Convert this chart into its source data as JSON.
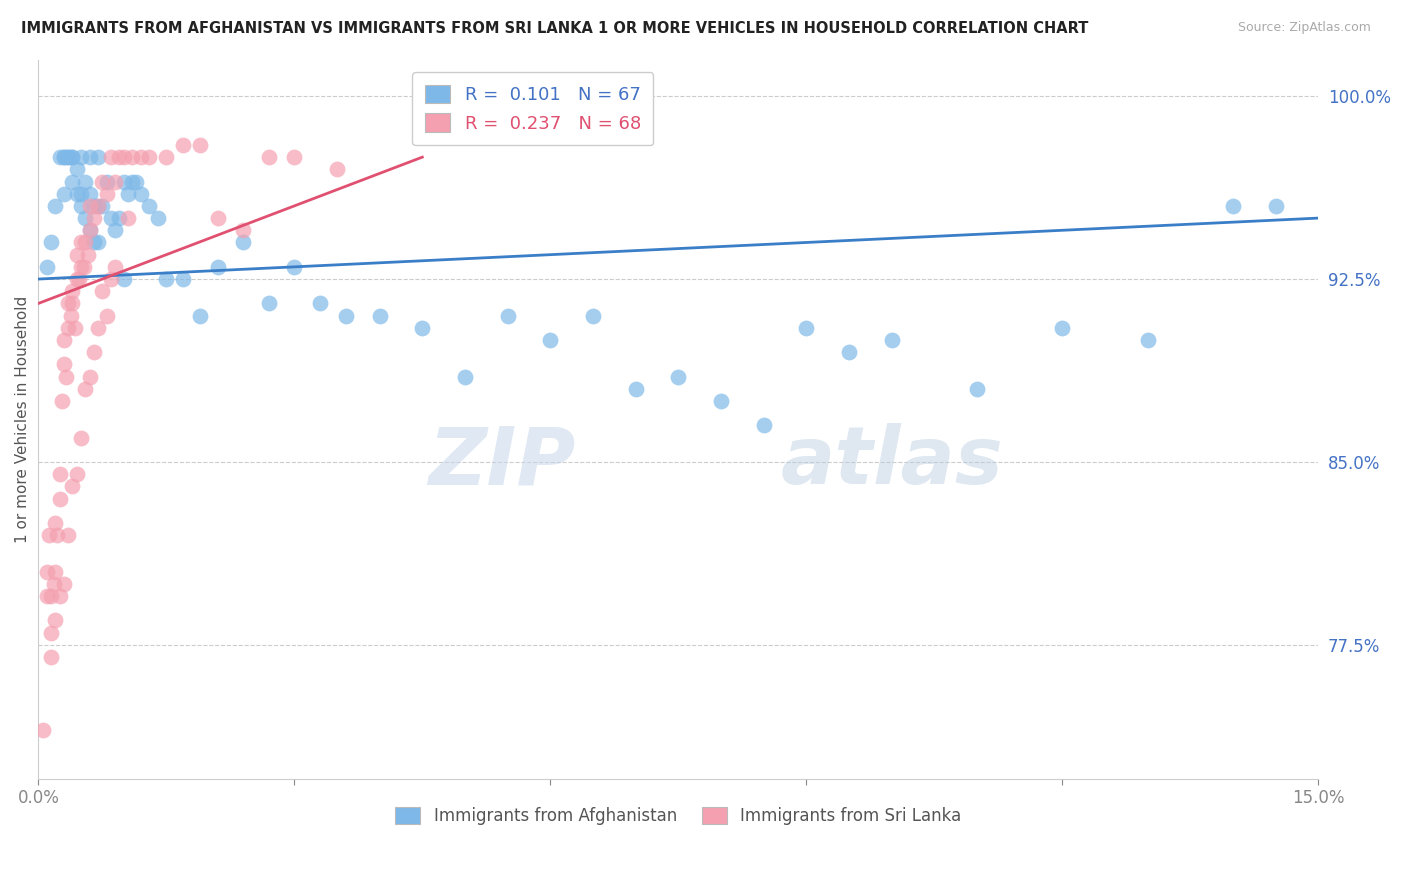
{
  "title": "IMMIGRANTS FROM AFGHANISTAN VS IMMIGRANTS FROM SRI LANKA 1 OR MORE VEHICLES IN HOUSEHOLD CORRELATION CHART",
  "source": "Source: ZipAtlas.com",
  "ylabel": "1 or more Vehicles in Household",
  "xlim": [
    0.0,
    15.0
  ],
  "ylim": [
    72.0,
    101.5
  ],
  "yticks": [
    77.5,
    85.0,
    92.5,
    100.0
  ],
  "xticks": [
    0.0,
    3.0,
    6.0,
    9.0,
    12.0,
    15.0
  ],
  "xtick_labels": [
    "0.0%",
    "",
    "",
    "",
    "",
    "15.0%"
  ],
  "ytick_labels": [
    "77.5%",
    "85.0%",
    "92.5%",
    "100.0%"
  ],
  "color_afg": "#7eb8e8",
  "color_sri": "#f4a0b0",
  "line_color_afg": "#3a7ec8",
  "line_color_sri": "#e05070",
  "watermark_zip": "ZIP",
  "watermark_atlas": "atlas",
  "afg_x": [
    0.1,
    0.15,
    0.2,
    0.25,
    0.3,
    0.3,
    0.35,
    0.35,
    0.4,
    0.4,
    0.45,
    0.45,
    0.5,
    0.5,
    0.55,
    0.55,
    0.6,
    0.6,
    0.65,
    0.65,
    0.7,
    0.7,
    0.75,
    0.8,
    0.85,
    0.9,
    0.95,
    1.0,
    1.0,
    1.05,
    1.1,
    1.15,
    1.2,
    1.3,
    1.4,
    1.5,
    1.7,
    1.9,
    2.1,
    2.4,
    2.7,
    3.0,
    3.3,
    3.6,
    4.0,
    4.5,
    5.0,
    5.5,
    6.0,
    6.5,
    7.0,
    7.5,
    8.0,
    8.5,
    9.0,
    9.5,
    10.0,
    11.0,
    12.0,
    13.0,
    14.0,
    14.5,
    0.3,
    0.4,
    0.5,
    0.6,
    0.7
  ],
  "afg_y": [
    93.0,
    94.0,
    95.5,
    97.5,
    97.5,
    96.0,
    97.5,
    97.5,
    97.5,
    96.5,
    96.0,
    97.0,
    95.5,
    96.0,
    95.0,
    96.5,
    94.5,
    96.0,
    94.0,
    95.5,
    94.0,
    95.5,
    95.5,
    96.5,
    95.0,
    94.5,
    95.0,
    92.5,
    96.5,
    96.0,
    96.5,
    96.5,
    96.0,
    95.5,
    95.0,
    92.5,
    92.5,
    91.0,
    93.0,
    94.0,
    91.5,
    93.0,
    91.5,
    91.0,
    91.0,
    90.5,
    88.5,
    91.0,
    90.0,
    91.0,
    88.0,
    88.5,
    87.5,
    86.5,
    90.5,
    89.5,
    90.0,
    88.0,
    90.5,
    90.0,
    95.5,
    95.5,
    97.5,
    97.5,
    97.5,
    97.5,
    97.5
  ],
  "sri_x": [
    0.05,
    0.1,
    0.1,
    0.12,
    0.15,
    0.15,
    0.18,
    0.2,
    0.2,
    0.22,
    0.25,
    0.25,
    0.28,
    0.3,
    0.3,
    0.32,
    0.35,
    0.35,
    0.38,
    0.4,
    0.4,
    0.43,
    0.45,
    0.45,
    0.48,
    0.5,
    0.5,
    0.53,
    0.55,
    0.58,
    0.6,
    0.6,
    0.65,
    0.7,
    0.75,
    0.8,
    0.85,
    0.9,
    0.95,
    1.0,
    1.05,
    1.1,
    1.2,
    1.3,
    1.5,
    1.7,
    1.9,
    2.1,
    2.4,
    2.7,
    3.0,
    3.5,
    0.15,
    0.2,
    0.25,
    0.3,
    0.35,
    0.4,
    0.45,
    0.5,
    0.55,
    0.6,
    0.65,
    0.7,
    0.75,
    0.8,
    0.85,
    0.9
  ],
  "sri_y": [
    74.0,
    79.5,
    80.5,
    82.0,
    79.5,
    78.0,
    80.0,
    80.5,
    82.5,
    82.0,
    83.5,
    84.5,
    87.5,
    89.0,
    90.0,
    88.5,
    90.5,
    91.5,
    91.0,
    92.0,
    91.5,
    90.5,
    92.5,
    93.5,
    92.5,
    93.0,
    94.0,
    93.0,
    94.0,
    93.5,
    94.5,
    95.5,
    95.0,
    95.5,
    96.5,
    96.0,
    97.5,
    96.5,
    97.5,
    97.5,
    95.0,
    97.5,
    97.5,
    97.5,
    97.5,
    98.0,
    98.0,
    95.0,
    94.5,
    97.5,
    97.5,
    97.0,
    77.0,
    78.5,
    79.5,
    80.0,
    82.0,
    84.0,
    84.5,
    86.0,
    88.0,
    88.5,
    89.5,
    90.5,
    92.0,
    91.0,
    92.5,
    93.0
  ]
}
